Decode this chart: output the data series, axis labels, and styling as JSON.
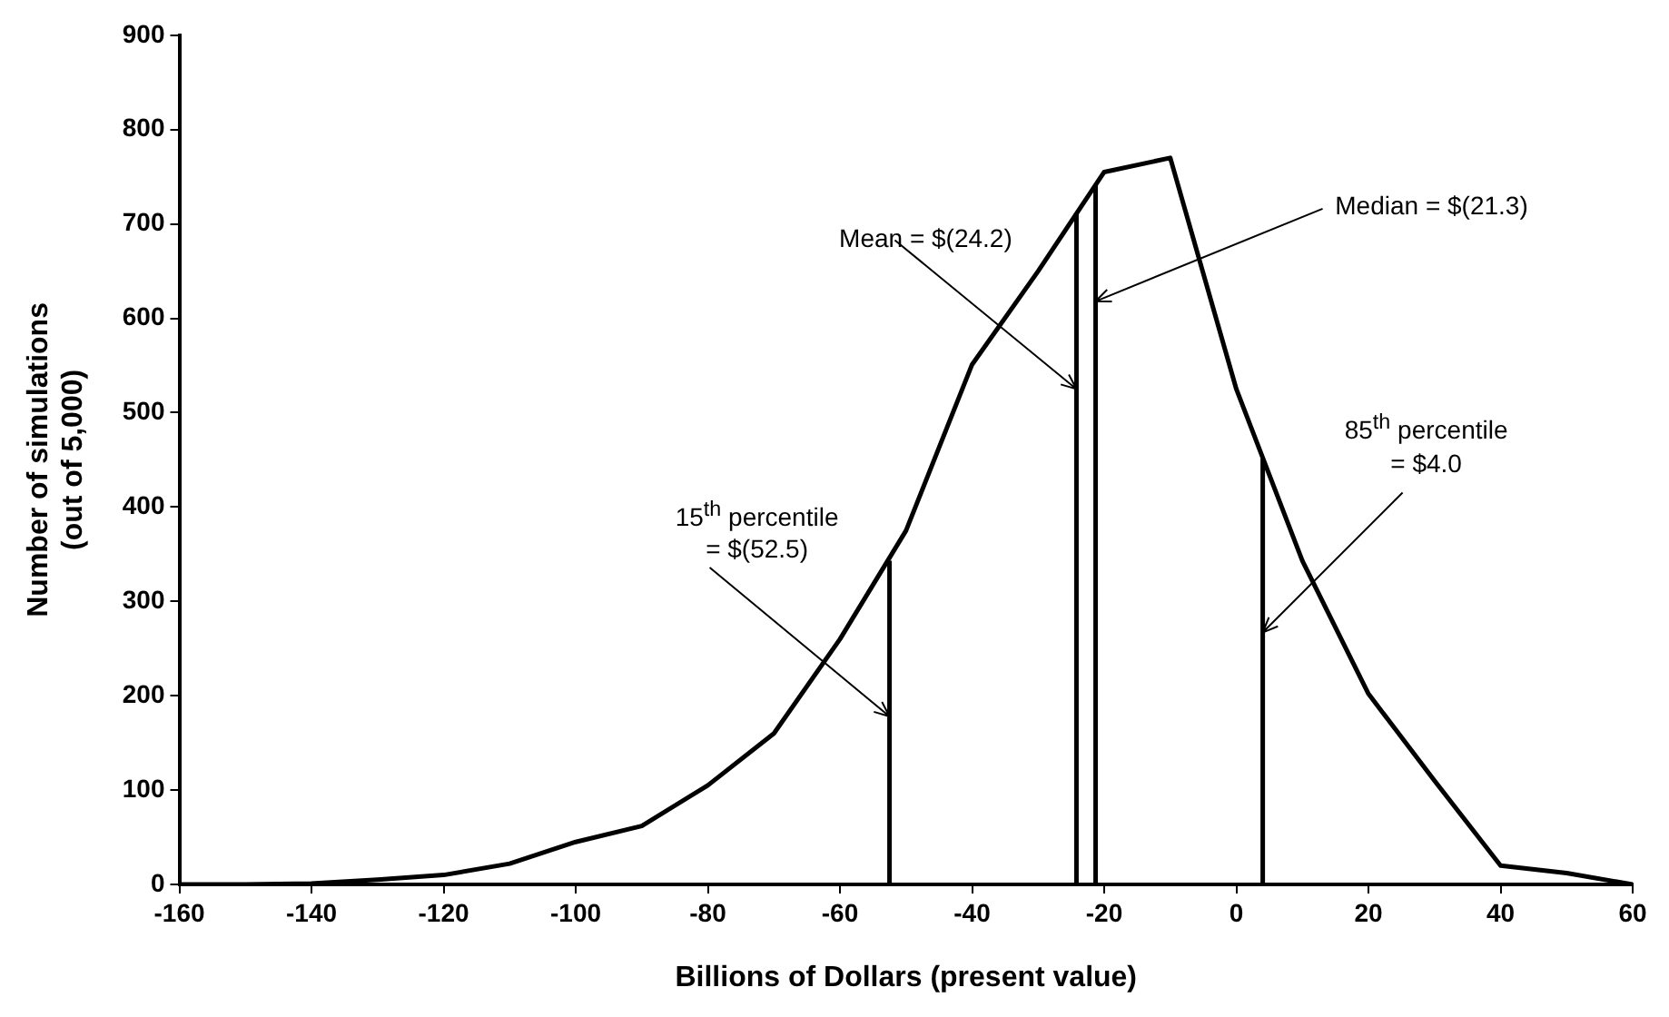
{
  "chart_data": {
    "type": "line",
    "xlabel": "Billions of Dollars (present value)",
    "ylabel": "Number of simulations\n(out of 5,000)",
    "xlim": [
      -160,
      60
    ],
    "xticks": [
      -160,
      -140,
      -120,
      -100,
      -80,
      -60,
      -40,
      -20,
      0,
      20,
      40,
      60
    ],
    "ylim": [
      0,
      900
    ],
    "yticks": [
      0,
      100,
      200,
      300,
      400,
      500,
      600,
      700,
      800,
      900
    ],
    "grid": false,
    "legend": false,
    "marker": "none",
    "line_style": "solid",
    "series": [
      {
        "color": "#000000",
        "x": [
          -160,
          -150,
          -140,
          -130,
          -120,
          -110,
          -100,
          -90,
          -80,
          -70,
          -60,
          -50,
          -40,
          -30,
          -20,
          -10,
          0,
          10,
          20,
          30,
          40,
          50,
          60
        ],
        "values": [
          0,
          0,
          1,
          5,
          10,
          22,
          45,
          62,
          105,
          160,
          260,
          375,
          551,
          650,
          755,
          770,
          525,
          343,
          202,
          110,
          20,
          12,
          0
        ]
      },
      {
        "color": "#000000",
        "x": [
          -52.5,
          -52.5
        ],
        "values": [
          0,
          343
        ]
      },
      {
        "color": "#000000",
        "x": [
          -24.2,
          -24.2
        ],
        "values": [
          0,
          712
        ]
      },
      {
        "color": "#000000",
        "x": [
          -21.3,
          -21.3
        ],
        "values": [
          0,
          741
        ]
      },
      {
        "color": "#000000",
        "x": [
          4.0,
          4.0
        ],
        "values": [
          0,
          451
        ]
      }
    ],
    "annotations": [
      {
        "text": "15$^{th}$ percentile\n= $(52.5)",
        "x": -52.5,
        "y": 178
      },
      {
        "text": "Mean = $(24.2)",
        "x": -24.2,
        "y": 525
      },
      {
        "text": "Median = $(21.3)",
        "x": -21.3,
        "y": 618
      },
      {
        "text": "85$^{th}$ percentile\n= $4.0",
        "x": 4.0,
        "y": 267
      }
    ]
  }
}
